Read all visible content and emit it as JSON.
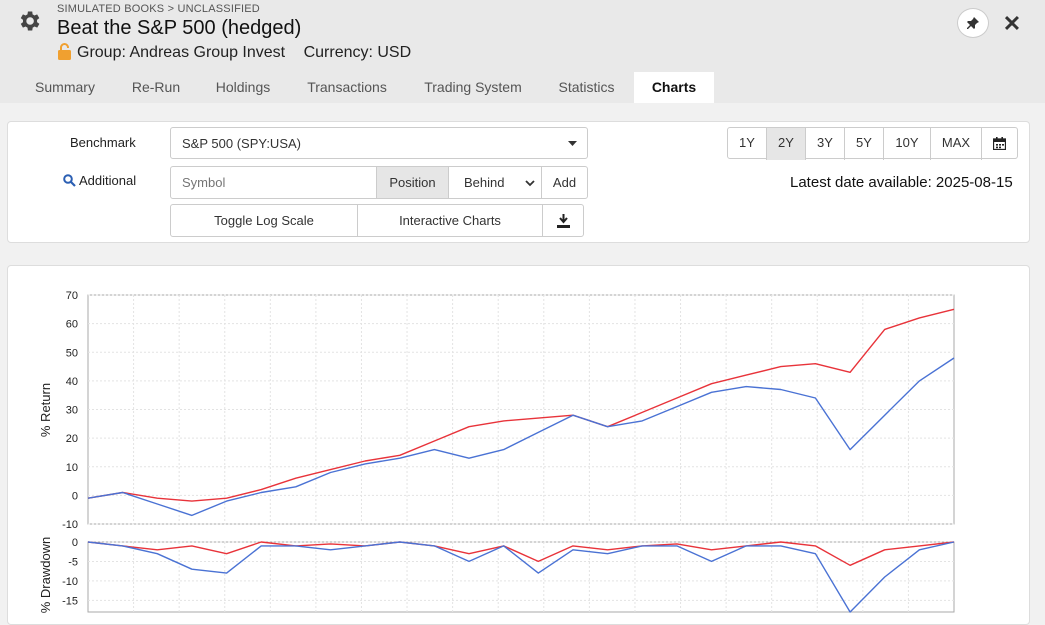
{
  "header": {
    "breadcrumb": "SIMULATED BOOKS > UNCLASSIFIED",
    "title": "Beat the S&P 500 (hedged)",
    "group": "Group: Andreas Group Invest",
    "currency": "Currency: USD",
    "close_glyph": "✕"
  },
  "tabs": [
    "Summary",
    "Re-Run",
    "Holdings",
    "Transactions",
    "Trading System",
    "Statistics",
    "Charts"
  ],
  "active_tab": "Charts",
  "controls": {
    "benchmark_label": "Benchmark",
    "benchmark_value": "S&P 500 (SPY:USA)",
    "additional_label": "Additional",
    "symbol_placeholder": "Symbol",
    "position_label": "Position",
    "behind_value": "Behind",
    "add_label": "Add",
    "toggle_log_label": "Toggle Log Scale",
    "interactive_label": "Interactive Charts",
    "ranges": [
      "1Y",
      "2Y",
      "3Y",
      "5Y",
      "10Y",
      "MAX"
    ],
    "active_range": "2Y",
    "latest_date": "Latest date available: 2025-08-15"
  },
  "icons": {
    "gear": "gear-icon",
    "lock": "lock-icon",
    "pin": "pin-icon",
    "close": "close-icon",
    "search": "search-icon",
    "dropdown": "chevron-down-icon",
    "download": "download-icon",
    "calendar": "calendar-icon"
  },
  "colors": {
    "portfolio": "#e8333a",
    "benchmark": "#4a72d4",
    "lock": "#f0a030"
  },
  "chart_data": [
    {
      "type": "line",
      "ylabel": "% Return",
      "ylim": [
        -10,
        70
      ],
      "yticks": [
        -10,
        0,
        10,
        20,
        30,
        40,
        50,
        60,
        70
      ],
      "grid": true,
      "x": [
        0,
        4,
        8,
        12,
        16,
        20,
        24,
        28,
        32,
        36,
        40,
        44,
        48,
        52,
        56,
        60,
        64,
        68,
        72,
        76,
        80,
        84,
        88,
        92,
        96,
        100
      ],
      "series": [
        {
          "color": "#e8333a",
          "values": [
            -1,
            1,
            -1,
            -2,
            -1,
            2,
            6,
            9,
            12,
            14,
            19,
            24,
            26,
            27,
            28,
            24,
            29,
            34,
            39,
            42,
            45,
            46,
            43,
            58,
            62,
            65
          ]
        },
        {
          "color": "#4a72d4",
          "values": [
            -1,
            1,
            -3,
            -7,
            -2,
            1,
            3,
            8,
            11,
            13,
            16,
            13,
            16,
            22,
            28,
            24,
            26,
            31,
            36,
            38,
            37,
            34,
            16,
            28,
            40,
            48
          ]
        }
      ]
    },
    {
      "type": "line",
      "ylabel": "% Drawdown",
      "ylim": [
        -18,
        0
      ],
      "yticks": [
        -15,
        -10,
        -5,
        0
      ],
      "grid": true,
      "x": [
        0,
        4,
        8,
        12,
        16,
        20,
        24,
        28,
        32,
        36,
        40,
        44,
        48,
        52,
        56,
        60,
        64,
        68,
        72,
        76,
        80,
        84,
        88,
        92,
        96,
        100
      ],
      "series": [
        {
          "color": "#e8333a",
          "values": [
            0,
            -1,
            -2,
            -1,
            -3,
            0,
            -1,
            -0.5,
            -1,
            0,
            -1,
            -3,
            -1,
            -5,
            -1,
            -2,
            -1,
            -0.5,
            -2,
            -1,
            0,
            -1,
            -6,
            -2,
            -1,
            0
          ]
        },
        {
          "color": "#4a72d4",
          "values": [
            0,
            -1,
            -3,
            -7,
            -8,
            -1,
            -1,
            -2,
            -1,
            0,
            -1,
            -5,
            -1,
            -8,
            -2,
            -3,
            -1,
            -1,
            -5,
            -1,
            -1,
            -3,
            -18,
            -9,
            -2,
            0
          ]
        }
      ]
    }
  ]
}
